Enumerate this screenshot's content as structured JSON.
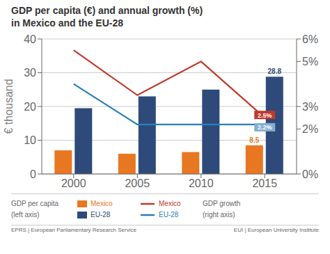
{
  "chart_data": {
    "type": "bar",
    "title": "GDP per capita (€) and annual growth (%)",
    "subtitle": "in Mexico and the EU-28",
    "categories": [
      "2000",
      "2005",
      "2010",
      "2015"
    ],
    "ylabel": "€ thousand",
    "ylim": [
      0,
      40
    ],
    "yticks": [
      0,
      10,
      20,
      30,
      40
    ],
    "y2lim": [
      0,
      6
    ],
    "y2ticks": [
      {
        "value": 0,
        "label": "0%"
      },
      {
        "value": 2,
        "label": "2%"
      },
      {
        "value": 3,
        "label": "3%"
      },
      {
        "value": 5,
        "label": "5%"
      },
      {
        "value": 6,
        "label": "6%"
      }
    ],
    "grid": true,
    "legend": "bottom",
    "series": [
      {
        "name": "Mexico",
        "type": "bar",
        "color": "#E87722",
        "values": [
          7.0,
          6.0,
          6.5,
          8.5
        ],
        "value_labels": [
          null,
          null,
          null,
          "8.5"
        ]
      },
      {
        "name": "EU-28",
        "type": "bar",
        "color": "#2E4A7A",
        "values": [
          19.5,
          23.0,
          25.0,
          28.8
        ],
        "value_labels": [
          null,
          null,
          null,
          "28.8"
        ]
      },
      {
        "name": "Mexico",
        "type": "line",
        "axis": "y2",
        "color": "#C0392B",
        "values": [
          5.5,
          3.5,
          5.0,
          2.5
        ]
      },
      {
        "name": "EU-28",
        "type": "line",
        "axis": "y2",
        "color": "#2980B9",
        "values": [
          4.0,
          2.2,
          2.2,
          2.2
        ]
      }
    ],
    "annotations": [
      {
        "text": "2.5%",
        "x": "2015",
        "y": 2.5,
        "axis": "y2",
        "color": "#C0392B"
      },
      {
        "text": "2.2%",
        "x": "2015",
        "y": 2.2,
        "axis": "y2",
        "color": "#85AECF"
      }
    ],
    "legend_groups": [
      {
        "title": "GDP per capita",
        "note": "(left axis)",
        "type": "bar"
      },
      {
        "title": "GDP growth",
        "note": "(right axis)",
        "type": "line"
      }
    ],
    "footer": [
      "EPRS | European Parliamentary Research Service",
      "EUI | European University Institute"
    ]
  }
}
